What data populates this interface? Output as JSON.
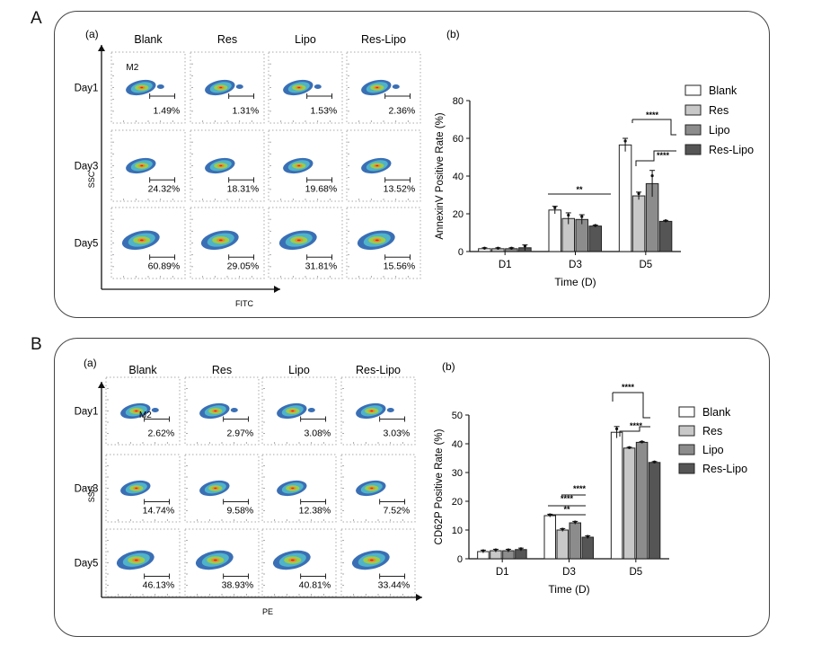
{
  "panel_A": {
    "letter": "A",
    "flow": {
      "label": "(a)",
      "columns": [
        "Blank",
        "Res",
        "Lipo",
        "Res-Lipo"
      ],
      "rows": [
        "Day1",
        "Day3",
        "Day5"
      ],
      "percentages": [
        [
          "1.49%",
          "1.31%",
          "1.53%",
          "2.36%"
        ],
        [
          "24.32%",
          "18.31%",
          "19.68%",
          "13.52%"
        ],
        [
          "60.89%",
          "29.05%",
          "31.81%",
          "15.56%"
        ]
      ],
      "gate_label": "M2",
      "xlabel": "FITC",
      "ylabel": "SSC"
    }
  },
  "panel_B": {
    "letter": "B",
    "flow": {
      "label": "(a)",
      "columns": [
        "Blank",
        "Res",
        "Lipo",
        "Res-Lipo"
      ],
      "rows": [
        "Day1",
        "Day3",
        "Day5"
      ],
      "percentages": [
        [
          "2.62%",
          "2.97%",
          "3.08%",
          "3.03%"
        ],
        [
          "14.74%",
          "9.58%",
          "12.38%",
          "7.52%"
        ],
        [
          "46.13%",
          "38.93%",
          "40.81%",
          "33.44%"
        ]
      ],
      "gate_label": "M2",
      "xlabel": "PE",
      "ylabel": "SSC"
    }
  },
  "chart_data": [
    {
      "type": "bar",
      "label": "(b)",
      "categories": [
        "D1",
        "D3",
        "D5"
      ],
      "series": [
        {
          "name": "Blank",
          "values": [
            1.5,
            22,
            56.5
          ],
          "errors": [
            0.5,
            2,
            3.5
          ],
          "color": "#ffffff"
        },
        {
          "name": "Res",
          "values": [
            1.5,
            17.5,
            29.5
          ],
          "errors": [
            0.5,
            3,
            2
          ],
          "color": "#c8c8c8"
        },
        {
          "name": "Lipo",
          "values": [
            1.5,
            17,
            36
          ],
          "errors": [
            0.5,
            2.5,
            7
          ],
          "color": "#8c8c8c"
        },
        {
          "name": "Res-Lipo",
          "values": [
            2,
            13.5,
            16
          ],
          "errors": [
            1.5,
            0.5,
            0.5
          ],
          "color": "#555555"
        }
      ],
      "ylim": [
        0,
        80
      ],
      "yticks": [
        0,
        20,
        40,
        60,
        80
      ],
      "xlabel": "Time (D)",
      "ylabel": "AnnexinV Positive Rate (%)",
      "legend_position": "top-right",
      "significance": [
        "**",
        "****",
        "****"
      ]
    },
    {
      "type": "bar",
      "label": "(b)",
      "categories": [
        "D1",
        "D3",
        "D5"
      ],
      "series": [
        {
          "name": "Blank",
          "values": [
            2.5,
            15,
            44
          ],
          "errors": [
            0.5,
            0.5,
            2
          ],
          "color": "#ffffff"
        },
        {
          "name": "Res",
          "values": [
            2.8,
            10,
            38.5
          ],
          "errors": [
            0.5,
            0.5,
            0.3
          ],
          "color": "#c8c8c8"
        },
        {
          "name": "Lipo",
          "values": [
            2.8,
            12.5,
            40.5
          ],
          "errors": [
            0.5,
            0.5,
            0.3
          ],
          "color": "#8c8c8c"
        },
        {
          "name": "Res-Lipo",
          "values": [
            3.2,
            7.5,
            33.5
          ],
          "errors": [
            0.5,
            0.5,
            0.3
          ],
          "color": "#555555"
        }
      ],
      "ylim": [
        0,
        50
      ],
      "yticks": [
        0,
        10,
        20,
        30,
        40,
        50
      ],
      "xlabel": "Time (D)",
      "ylabel": "CD62P Positive Rate (%)",
      "legend_position": "top-right",
      "significance": [
        "****",
        "****",
        "**",
        "****",
        "****"
      ]
    }
  ]
}
